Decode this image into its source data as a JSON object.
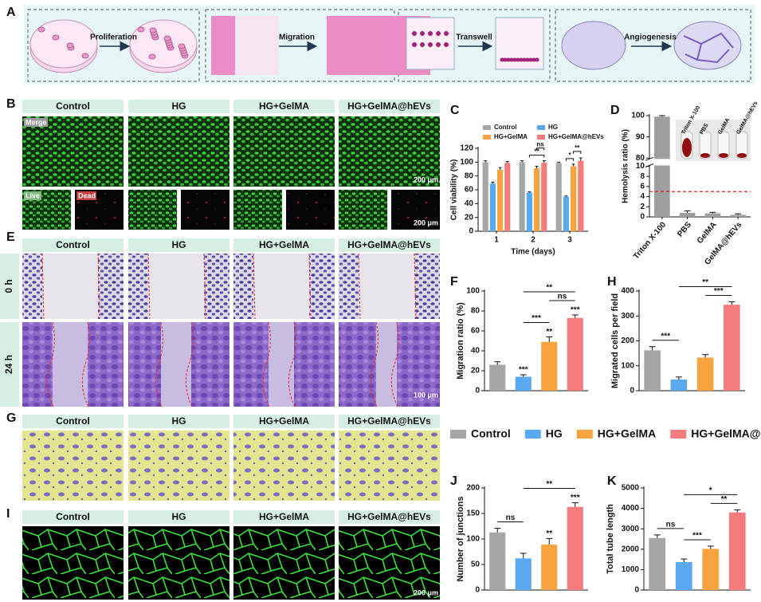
{
  "figure": {
    "panel_labels": [
      "A",
      "B",
      "C",
      "D",
      "E",
      "F",
      "G",
      "H",
      "I",
      "J",
      "K"
    ],
    "schematic": [
      "Proliferation",
      "Migration",
      "Transwell",
      "Angiogenesis"
    ],
    "B": {
      "headers": [
        "Control",
        "HG",
        "HG+GelMA",
        "HG+GelMA@hEVs"
      ],
      "merge": "Merge",
      "live": "Live",
      "dead": "Dead",
      "scale_bars": [
        "200 μm",
        "200 μm"
      ]
    },
    "E": {
      "headers": [
        "Control",
        "HG",
        "HG+GelMA",
        "HG+GelMA@hEVs"
      ],
      "rows": [
        "0 h",
        "24 h"
      ],
      "scale_bar": "100 μm"
    },
    "G": {
      "headers": [
        "Control",
        "HG",
        "HG+GelMA",
        "HG+GelMA@hEVs"
      ]
    },
    "I": {
      "headers": [
        "Control",
        "HG",
        "HG+GelMA",
        "HG+GelMA@hEVs"
      ],
      "scale_bar": "200 μm"
    },
    "legend": {
      "names": [
        "Control",
        "HG",
        "HG+GelMA",
        "HG+GelMA@hEVs"
      ],
      "colors": [
        "#a6a6a6",
        "#5aa9f0",
        "#f7a440",
        "#f47c7c"
      ]
    }
  },
  "chart_data": [
    {
      "type": "grouped-bar",
      "ylabel": "Cell viability (%)",
      "xlabel": "Time (days)",
      "categories": [
        "1",
        "2",
        "3"
      ],
      "series": [
        {
          "name": "Control",
          "color": "#a6a6a6",
          "values": [
            100,
            100,
            99
          ],
          "errors": [
            2,
            2,
            1
          ]
        },
        {
          "name": "HG",
          "color": "#5aa9f0",
          "values": [
            69,
            56,
            50
          ],
          "errors": [
            2,
            1,
            1
          ]
        },
        {
          "name": "HG+GelMA",
          "color": "#f7a440",
          "values": [
            89,
            91,
            94
          ],
          "errors": [
            3,
            3,
            3
          ]
        },
        {
          "name": "HG+GelMA@hEVs",
          "color": "#f47c7c",
          "values": [
            99,
            99,
            102
          ],
          "errors": [
            2,
            3,
            4
          ]
        }
      ],
      "brackets": [
        {
          "category": 1,
          "between": [
            1,
            3
          ],
          "label": "**"
        },
        {
          "category": 1,
          "between": [
            2,
            3
          ],
          "label": "ns"
        },
        {
          "category": 2,
          "between": [
            1,
            2
          ],
          "label": "*"
        },
        {
          "category": 2,
          "between": [
            2,
            3
          ],
          "label": "**"
        }
      ],
      "ylim": [
        0,
        120
      ],
      "yticks": [
        0,
        20,
        40,
        60,
        80,
        100,
        120
      ]
    },
    {
      "type": "bar",
      "ylabel": "Hemolysis ratio (%)",
      "categories": [
        "Triton X-100",
        "PBS",
        "GelMA",
        "GelMA@hEVs"
      ],
      "values": [
        99.5,
        0.8,
        0.7,
        0.4
      ],
      "errors": [
        0.5,
        0.4,
        0.2,
        0.2
      ],
      "color": "#9e9e9e",
      "ylim": [
        0,
        100
      ],
      "yticks": [
        0,
        2,
        4,
        6,
        8,
        10,
        80,
        90,
        100
      ],
      "axis_break": [
        10,
        80
      ],
      "threshold": 5,
      "threshold_color": "#e0201b",
      "photo_labels": [
        "Triton X-100",
        "PBS",
        "GelMA",
        "GelMA@hEVs"
      ]
    },
    {
      "type": "bar",
      "ylabel": "Migration ratio (%)",
      "values": [
        26,
        14,
        49,
        73
      ],
      "errors": [
        3,
        2,
        5,
        3
      ],
      "stars": [
        null,
        "***",
        "**",
        "***"
      ],
      "brackets": [
        {
          "between": [
            1,
            2
          ],
          "label": "***"
        },
        {
          "between": [
            2,
            3
          ],
          "label": "ns"
        },
        {
          "between": [
            1,
            3
          ],
          "label": "**"
        }
      ],
      "ylim": [
        0,
        100
      ],
      "yticks": [
        0,
        20,
        40,
        60,
        80,
        100
      ]
    },
    {
      "type": "bar",
      "ylabel": "Migrated cells per field",
      "values": [
        162,
        45,
        133,
        345
      ],
      "errors": [
        15,
        10,
        12,
        12
      ],
      "stars": [
        null,
        null,
        null,
        null
      ],
      "brackets": [
        {
          "between": [
            0,
            1
          ],
          "label": "***"
        },
        {
          "between": [
            2,
            3
          ],
          "label": "***"
        },
        {
          "between": [
            1,
            3
          ],
          "label": "**"
        }
      ],
      "ylim": [
        0,
        400
      ],
      "yticks": [
        0,
        100,
        200,
        300,
        400
      ]
    },
    {
      "type": "bar",
      "ylabel": "Number of junctions",
      "values": [
        113,
        62,
        89,
        163
      ],
      "errors": [
        8,
        10,
        12,
        8
      ],
      "stars": [
        null,
        null,
        "**",
        "***"
      ],
      "brackets": [
        {
          "between": [
            0,
            1
          ],
          "label": "ns"
        },
        {
          "between": [
            1,
            3
          ],
          "label": "**"
        }
      ],
      "ylim": [
        0,
        200
      ],
      "yticks": [
        0,
        50,
        100,
        150,
        200
      ]
    },
    {
      "type": "bar",
      "ylabel": "Total tube length",
      "values": [
        2550,
        1370,
        2020,
        3800
      ],
      "errors": [
        150,
        150,
        130,
        130
      ],
      "stars": [
        null,
        null,
        null,
        null
      ],
      "brackets": [
        {
          "between": [
            0,
            1
          ],
          "label": "ns"
        },
        {
          "between": [
            1,
            2
          ],
          "label": "***"
        },
        {
          "between": [
            2,
            3
          ],
          "label": "**"
        },
        {
          "between": [
            1,
            3
          ],
          "label": "*"
        }
      ],
      "ylim": [
        0,
        5000
      ],
      "yticks": [
        0,
        1000,
        2000,
        3000,
        4000,
        5000
      ]
    }
  ]
}
